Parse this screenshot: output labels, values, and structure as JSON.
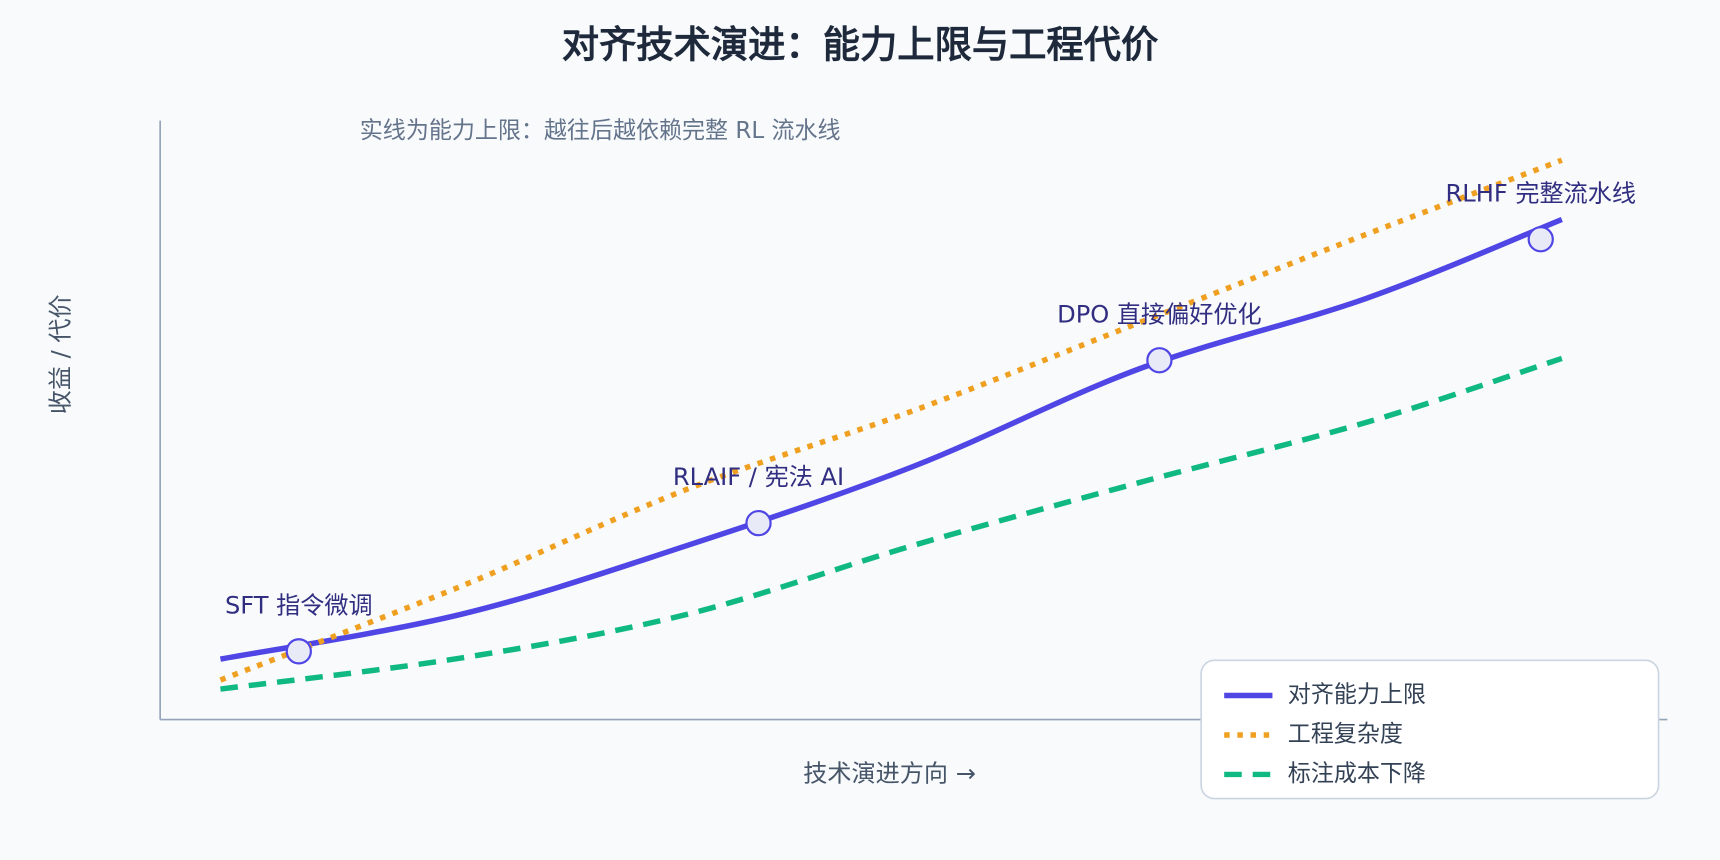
{
  "chart_data": {
    "type": "line",
    "title": "对齐技术演进：能力上限与工程代价",
    "annotation": "实线为能力上限：越往后越依赖完整 RL 流水线",
    "x_label": "技术演进方向 →",
    "y_label": "收益 / 代价",
    "xlim": [
      0,
      100
    ],
    "ylim": [
      0,
      100
    ],
    "x": [
      4,
      20,
      35,
      50,
      65,
      80,
      93
    ],
    "series": [
      {
        "name": "对齐能力上限",
        "color": "#4f46e5",
        "style": "solid",
        "values": [
          10.1,
          17.6,
          29.1,
          42.3,
          58.6,
          70.3,
          83.5
        ]
      },
      {
        "name": "工程复杂度",
        "color": "#f0a020",
        "style": "dotted",
        "values": [
          6.6,
          22.3,
          38.5,
          51.6,
          66.3,
          81,
          93.4
        ]
      },
      {
        "name": "标注成本下降",
        "color": "#10b981",
        "style": "dashed",
        "values": [
          5.1,
          10.3,
          17.6,
          29.1,
          39.6,
          49.6,
          60.3
        ]
      }
    ],
    "milestones": [
      {
        "label": "SFT 指令微调",
        "x": 9.2,
        "y": 11.4
      },
      {
        "label": "RLAIF / 宪法 AI",
        "x": 39.7,
        "y": 32.8
      },
      {
        "label": "DPO 直接偏好优化",
        "x": 66.3,
        "y": 60
      },
      {
        "label": "RLHF 完整流水线",
        "x": 91.6,
        "y": 80.2
      }
    ],
    "legend": "lower right"
  }
}
